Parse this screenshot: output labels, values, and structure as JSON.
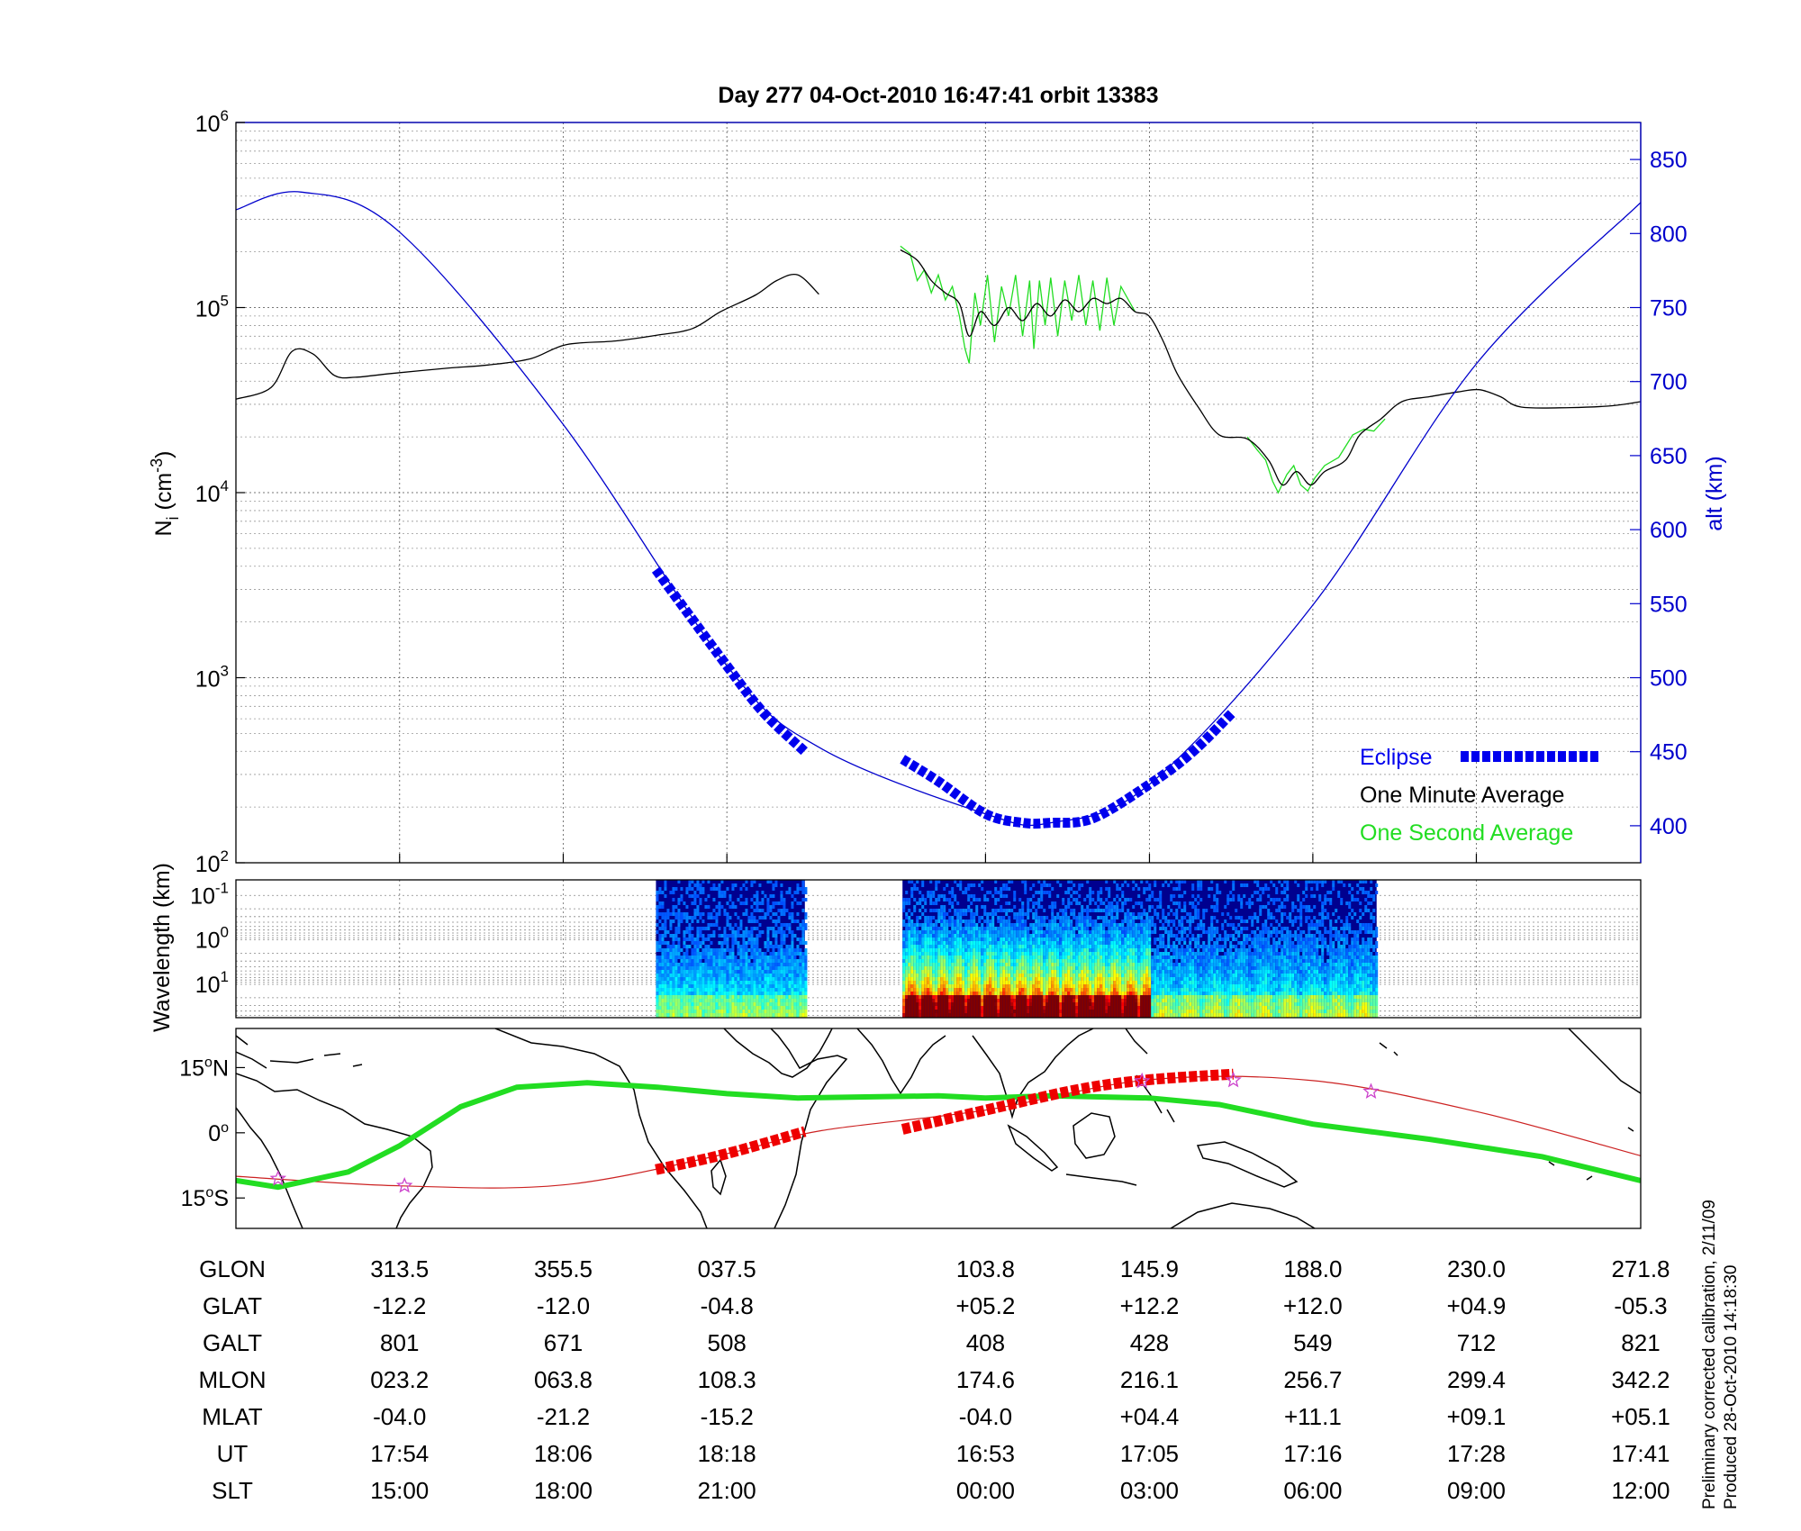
{
  "title": "Day 277  04-Oct-2010 16:47:41   orbit 13383",
  "colors": {
    "density_minute": "#000000",
    "density_second": "#22dd22",
    "altitude": "#0000cc",
    "eclipse": "#0000ee",
    "map_track": "#ee0000",
    "equator_line": "#22dd22",
    "axis": "#000000",
    "right_axis": "#0000cc"
  },
  "chart_data": [
    {
      "type": "line",
      "panel": "density",
      "ylabel_left": "N",
      "ylabel_left_sub": "i",
      "ylabel_left_unit": "(cm",
      "ylabel_left_unit_sup": "-3",
      "ylabel_left_unit_close": ")",
      "ylabel_right": "alt (km)",
      "y_scale": "log",
      "ylim": [
        100,
        1000000
      ],
      "y_ticks": [
        {
          "base": "10",
          "exp": "2"
        },
        {
          "base": "10",
          "exp": "3"
        },
        {
          "base": "10",
          "exp": "4"
        },
        {
          "base": "10",
          "exp": "5"
        },
        {
          "base": "10",
          "exp": "6"
        }
      ],
      "y2lim": [
        375,
        875
      ],
      "y2_ticks": [
        "400",
        "450",
        "500",
        "550",
        "600",
        "650",
        "700",
        "750",
        "800",
        "850"
      ],
      "xlim": [
        0,
        1
      ],
      "x_ticks": [
        0.1165,
        0.233,
        0.3495,
        0.5336,
        0.6503,
        0.7666,
        0.883,
        1.0
      ],
      "grid": true,
      "legend_position": "bottom-right",
      "legend": [
        {
          "label": "Eclipse",
          "color": "#0000ee",
          "marker": "squares"
        },
        {
          "label": "One Minute Average",
          "color": "#000000"
        },
        {
          "label": "One Second Average",
          "color": "#22dd22"
        }
      ],
      "series": [
        {
          "name": "One Minute Average",
          "segments": [
            [
              [
                0.0,
                32000
              ],
              [
                0.025,
                37000
              ],
              [
                0.04,
                58000
              ],
              [
                0.055,
                56000
              ],
              [
                0.07,
                43000
              ],
              [
                0.085,
                42000
              ],
              [
                0.11,
                44000
              ],
              [
                0.15,
                47000
              ],
              [
                0.18,
                49000
              ],
              [
                0.21,
                53000
              ],
              [
                0.235,
                63000
              ],
              [
                0.27,
                66000
              ],
              [
                0.3,
                71000
              ],
              [
                0.325,
                77000
              ],
              [
                0.345,
                95000
              ],
              [
                0.37,
                117000
              ],
              [
                0.385,
                140000
              ],
              [
                0.4,
                150000
              ],
              [
                0.415,
                118000
              ]
            ],
            [
              [
                0.473,
                205000
              ],
              [
                0.485,
                180000
              ],
              [
                0.495,
                140000
              ],
              [
                0.505,
                120000
              ],
              [
                0.515,
                105000
              ],
              [
                0.522,
                70000
              ],
              [
                0.53,
                95000
              ],
              [
                0.54,
                80000
              ],
              [
                0.55,
                100000
              ],
              [
                0.56,
                85000
              ],
              [
                0.57,
                105000
              ],
              [
                0.58,
                90000
              ],
              [
                0.59,
                110000
              ],
              [
                0.6,
                95000
              ],
              [
                0.61,
                112000
              ],
              [
                0.62,
                105000
              ],
              [
                0.63,
                112000
              ],
              [
                0.64,
                95000
              ],
              [
                0.65,
                90000
              ],
              [
                0.66,
                66000
              ],
              [
                0.67,
                44000
              ],
              [
                0.685,
                29000
              ],
              [
                0.7,
                20500
              ],
              [
                0.72,
                19500
              ],
              [
                0.735,
                15000
              ],
              [
                0.745,
                11000
              ],
              [
                0.755,
                13000
              ],
              [
                0.765,
                11000
              ],
              [
                0.775,
                13000
              ],
              [
                0.79,
                15000
              ],
              [
                0.8,
                20500
              ],
              [
                0.815,
                25000
              ],
              [
                0.83,
                31000
              ],
              [
                0.85,
                33000
              ],
              [
                0.87,
                35000
              ],
              [
                0.885,
                36000
              ],
              [
                0.9,
                33000
              ],
              [
                0.915,
                29000
              ],
              [
                0.95,
                28800
              ],
              [
                0.98,
                29500
              ],
              [
                1.0,
                31000
              ]
            ]
          ]
        },
        {
          "name": "One Second Average",
          "segments": [
            [
              [
                0.473,
                215000
              ],
              [
                0.48,
                195000
              ],
              [
                0.485,
                140000
              ],
              [
                0.49,
                160000
              ],
              [
                0.495,
                120000
              ],
              [
                0.5,
                150000
              ],
              [
                0.505,
                110000
              ],
              [
                0.51,
                130000
              ],
              [
                0.515,
                90000
              ],
              [
                0.519,
                60000
              ],
              [
                0.522,
                50000
              ],
              [
                0.526,
                120000
              ],
              [
                0.53,
                80000
              ],
              [
                0.535,
                150000
              ],
              [
                0.54,
                65000
              ],
              [
                0.545,
                130000
              ],
              [
                0.55,
                90000
              ],
              [
                0.555,
                150000
              ],
              [
                0.56,
                70000
              ],
              [
                0.565,
                140000
              ],
              [
                0.568,
                60000
              ],
              [
                0.572,
                140000
              ],
              [
                0.576,
                80000
              ],
              [
                0.58,
                145000
              ],
              [
                0.585,
                70000
              ],
              [
                0.59,
                140000
              ],
              [
                0.595,
                85000
              ],
              [
                0.6,
                150000
              ],
              [
                0.605,
                80000
              ],
              [
                0.61,
                140000
              ],
              [
                0.615,
                75000
              ],
              [
                0.62,
                145000
              ],
              [
                0.625,
                80000
              ],
              [
                0.63,
                130000
              ],
              [
                0.64,
                95000
              ]
            ],
            [
              [
                0.72,
                20000
              ],
              [
                0.727,
                17000
              ],
              [
                0.733,
                15000
              ],
              [
                0.738,
                11500
              ],
              [
                0.742,
                10000
              ],
              [
                0.748,
                12500
              ],
              [
                0.753,
                14000
              ],
              [
                0.758,
                11000
              ],
              [
                0.763,
                10200
              ],
              [
                0.768,
                12000
              ],
              [
                0.775,
                14000
              ],
              [
                0.785,
                15500
              ],
              [
                0.795,
                20500
              ],
              [
                0.803,
                22000
              ],
              [
                0.81,
                21500
              ],
              [
                0.818,
                25000
              ]
            ]
          ]
        }
      ],
      "altitude": {
        "name": "alt (km)",
        "x": [
          0.0,
          0.0466,
          0.1165,
          0.233,
          0.3495,
          0.4169,
          0.5336,
          0.58,
          0.6503,
          0.7666,
          0.883,
          1.0
        ],
        "y": [
          816,
          828,
          801,
          671,
          508,
          452,
          408,
          402,
          428,
          549,
          712,
          821
        ]
      },
      "eclipse_segments": [
        {
          "x": [
            0.299,
            0.3198,
            0.3495,
            0.375,
            0.405
          ],
          "y": [
            573,
            546,
            508,
            477,
            450
          ]
        },
        {
          "x": [
            0.4745,
            0.5,
            0.5336,
            0.56,
            0.58,
            0.61,
            0.6503,
            0.68,
            0.71
          ],
          "y": [
            445,
            430,
            408,
            402,
            402,
            405,
            428,
            449,
            477
          ]
        }
      ]
    },
    {
      "type": "heatmap",
      "panel": "spectrogram",
      "ylabel": "Wavelength (km)",
      "y_scale": "log",
      "y_ticks": [
        {
          "base": "10",
          "exp": "-1"
        },
        {
          "base": "10",
          "exp": "0"
        },
        {
          "base": "10",
          "exp": "1"
        }
      ],
      "colormap": "jet",
      "data_spans": [
        [
          0.299,
          0.405
        ],
        [
          0.4745,
          0.812
        ]
      ]
    },
    {
      "type": "map",
      "panel": "ground-track",
      "lat_range": [
        -22,
        24
      ],
      "lat_ticks": [
        {
          "value": 15,
          "label": "15",
          "hemi": "N"
        },
        {
          "value": 0,
          "label": "0",
          "hemi": ""
        },
        {
          "value": -15,
          "label": "15",
          "hemi": "S"
        }
      ],
      "ground_track": {
        "x": [
          0.0,
          0.1165,
          0.233,
          0.3495,
          0.4169,
          0.5336,
          0.6503,
          0.7666,
          0.883,
          1.0
        ],
        "lat": [
          -10.0,
          -12.2,
          -12.0,
          -4.8,
          0.5,
          5.2,
          12.2,
          12.0,
          4.9,
          -5.3
        ]
      },
      "eclipse_track": [
        {
          "x": [
            0.299,
            0.3495,
            0.405
          ],
          "lat": [
            -8.5,
            -4.8,
            0.3
          ]
        },
        {
          "x": [
            0.4745,
            0.5336,
            0.6,
            0.6503,
            0.71
          ],
          "lat": [
            0.8,
            5.2,
            10.0,
            12.2,
            13.5
          ]
        }
      ],
      "magnetic_equator": {
        "x": [
          0.0,
          0.03,
          0.08,
          0.1165,
          0.16,
          0.2,
          0.25,
          0.3,
          0.3495,
          0.4,
          0.5,
          0.5336,
          0.58,
          0.6503,
          0.7,
          0.7666,
          0.85,
          0.93,
          1.0
        ],
        "lat": [
          -11.0,
          -12.5,
          -9.0,
          -3.0,
          6.0,
          10.5,
          11.5,
          10.5,
          9.0,
          8.0,
          8.5,
          8.0,
          8.5,
          8.0,
          6.5,
          2.0,
          -1.5,
          -5.5,
          -11.0
        ]
      },
      "stars_x": [
        0.03,
        0.12,
        0.645,
        0.71,
        0.808
      ]
    }
  ],
  "table": {
    "rows": [
      {
        "label": "GLON",
        "values": [
          "313.5",
          "355.5",
          "037.5",
          "103.8",
          "145.9",
          "188.0",
          "230.0",
          "271.8"
        ]
      },
      {
        "label": "GLAT",
        "values": [
          "-12.2",
          "-12.0",
          "-04.8",
          "+05.2",
          "+12.2",
          "+12.0",
          "+04.9",
          "-05.3"
        ]
      },
      {
        "label": "GALT",
        "values": [
          "801",
          "671",
          "508",
          "408",
          "428",
          "549",
          "712",
          "821"
        ]
      },
      {
        "label": "MLON",
        "values": [
          "023.2",
          "063.8",
          "108.3",
          "174.6",
          "216.1",
          "256.7",
          "299.4",
          "342.2"
        ]
      },
      {
        "label": "MLAT",
        "values": [
          "-04.0",
          "-21.2",
          "-15.2",
          "-04.0",
          "+04.4",
          "+11.1",
          "+09.1",
          "+05.1"
        ]
      },
      {
        "label": "UT",
        "values": [
          "17:54",
          "18:06",
          "18:18",
          "16:53",
          "17:05",
          "17:16",
          "17:28",
          "17:41"
        ]
      },
      {
        "label": "SLT",
        "values": [
          "15:00",
          "18:00",
          "21:00",
          "00:00",
          "03:00",
          "06:00",
          "09:00",
          "12:00"
        ]
      }
    ]
  },
  "footer": {
    "line1": "Preliminary corrected calibration, 2/11/09",
    "line2": "Produced 28-Oct-2010 14:18:30"
  }
}
